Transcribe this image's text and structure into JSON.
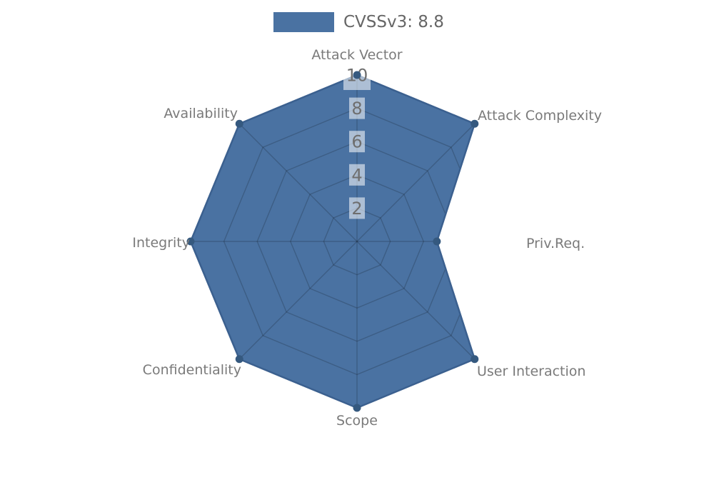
{
  "legend": {
    "label": "CVSSv3: 8.8"
  },
  "chart_data": {
    "type": "radar",
    "title": "",
    "categories": [
      "Attack Vector",
      "Attack Complexity",
      "Priv.Req.",
      "User Interaction",
      "Scope",
      "Confidentiality",
      "Integrity",
      "Availability"
    ],
    "series": [
      {
        "name": "CVSSv3: 8.8",
        "values": [
          10,
          10,
          4.8,
          10,
          10,
          10,
          10,
          10
        ]
      }
    ],
    "rlim": [
      0,
      10
    ],
    "ticks": [
      2,
      4,
      6,
      8,
      10
    ],
    "grid": true,
    "grid_shape": "polygon",
    "legend_position": "top",
    "colors": {
      "fill": "#4a72a2",
      "border": "#3b608f",
      "point": "#35597f",
      "grid": "rgba(0,0,0,0.18)",
      "axis_label": "#7a7a7a",
      "tick_label": "#6e6e6e",
      "tick_backdrop": "rgba(255,255,255,0.55)",
      "legend_text": "#666666",
      "background": "#ffffff"
    }
  }
}
